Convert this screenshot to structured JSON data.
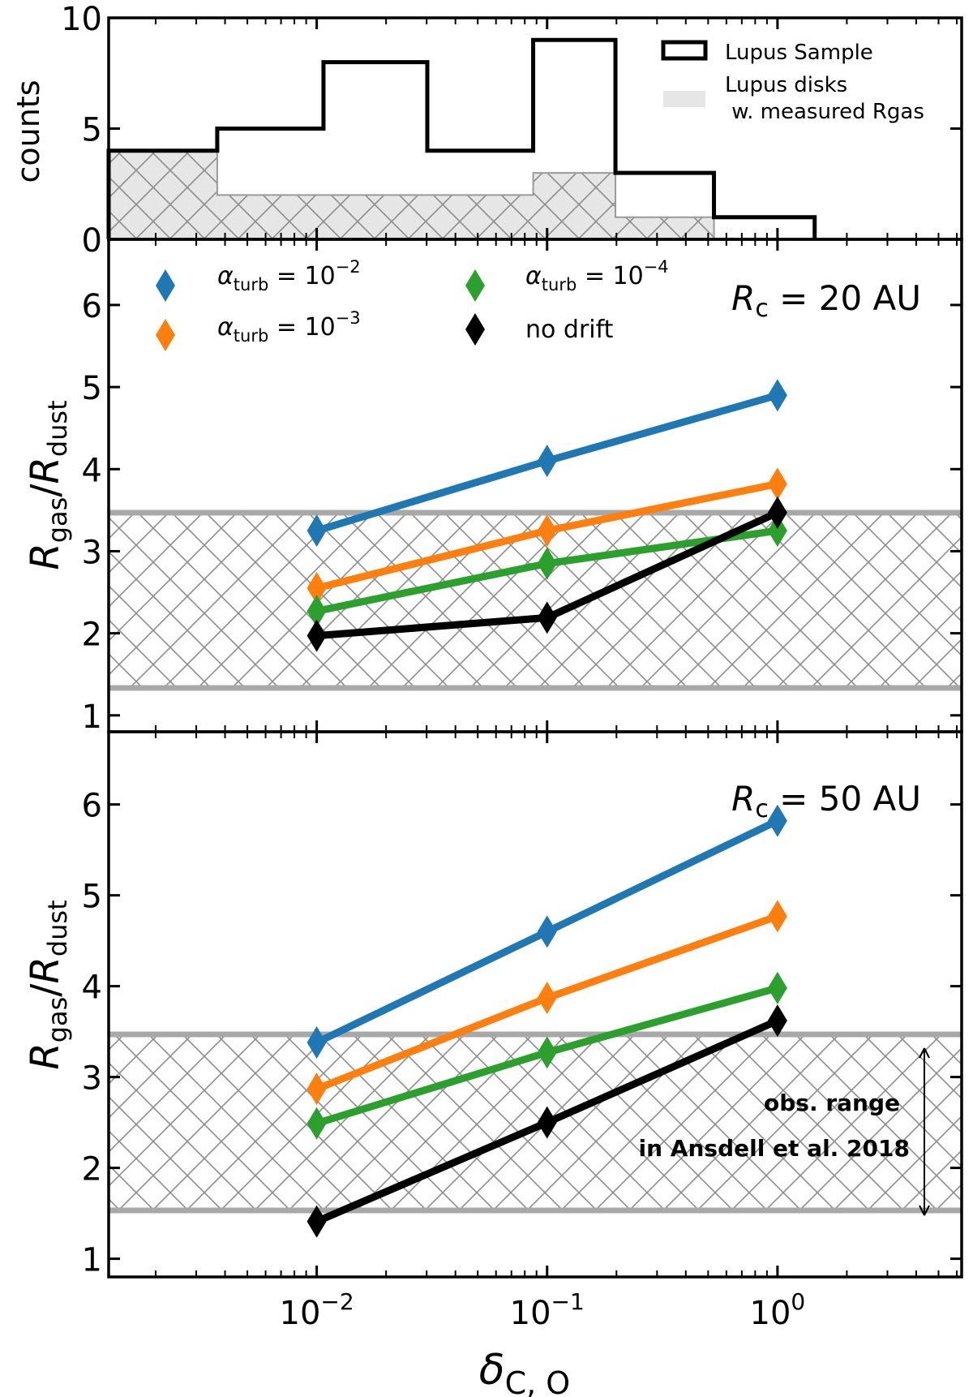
{
  "figure": {
    "xlabel": "δ",
    "xlabel_sub": "C, O",
    "xscale": "log",
    "xlim": [
      0.00125,
      6.3
    ],
    "x_ticks": [
      {
        "value": 0.01,
        "base": "10",
        "exp": "−2"
      },
      {
        "value": 0.1,
        "base": "10",
        "exp": "−1"
      },
      {
        "value": 1,
        "base": "10",
        "exp": "0"
      }
    ]
  },
  "chart_data": [
    {
      "type": "histogram",
      "panel": "top",
      "ylabel": "counts",
      "ylim": [
        0,
        10
      ],
      "y_ticks": [
        "0",
        "5",
        "10"
      ],
      "series": [
        {
          "name": "Lupus Sample",
          "style": "step-outline",
          "color": "#000000",
          "bin_edges": [
            0.00125,
            0.0037,
            0.0107,
            0.0302,
            0.087,
            0.198,
            0.53,
            1.45
          ],
          "counts": [
            4,
            5,
            8,
            4,
            9,
            3,
            1
          ]
        },
        {
          "name": "Lupus disks",
          "name_line2": " w. measured Rgas",
          "style": "filled-hatched",
          "color": "#e6e6e6",
          "bin_edges": [
            0.00125,
            0.0037,
            0.087,
            0.198,
            0.53
          ],
          "counts": [
            4,
            2,
            3,
            1
          ]
        }
      ],
      "legend_position": "top-right"
    },
    {
      "type": "line",
      "panel": "middle",
      "annotation": {
        "var": "R",
        "sub": "c",
        "text": " = 20 AU"
      },
      "ylabel": {
        "a": "R",
        "a_sub": "gas",
        "b": "R",
        "b_sub": "dust"
      },
      "ylim": [
        0.8,
        6.8
      ],
      "y_ticks": [
        "1",
        "2",
        "3",
        "4",
        "5",
        "6"
      ],
      "obs_band": [
        1.3,
        3.45
      ],
      "x": [
        0.01,
        0.1,
        1
      ],
      "series": [
        {
          "name": "α",
          "name_sub": "turb",
          "name_tail": " = 10",
          "name_exp": "−2",
          "color": "#1f77b4",
          "values": [
            3.25,
            4.1,
            4.9
          ]
        },
        {
          "name": "α",
          "name_sub": "turb",
          "name_tail": " = 10",
          "name_exp": "−3",
          "color": "#ff7f0e",
          "values": [
            2.55,
            3.25,
            3.82
          ]
        },
        {
          "name": "α",
          "name_sub": "turb",
          "name_tail": " = 10",
          "name_exp": "−4",
          "color": "#2ca02c",
          "values": [
            2.27,
            2.85,
            3.25
          ]
        },
        {
          "name": "no drift",
          "color": "#000000",
          "values": [
            1.97,
            2.19,
            3.47
          ]
        }
      ],
      "legend_position": "top-left"
    },
    {
      "type": "line",
      "panel": "bottom",
      "annotation": {
        "var": "R",
        "sub": "c",
        "text": " = 50 AU"
      },
      "ylabel": {
        "a": "R",
        "a_sub": "gas",
        "b": "R",
        "b_sub": "dust"
      },
      "ylim": [
        0.8,
        6.8
      ],
      "y_ticks": [
        "1",
        "2",
        "3",
        "4",
        "5",
        "6"
      ],
      "obs_band": [
        1.3,
        3.45
      ],
      "obs_note": [
        "obs. range",
        "in Ansdell et al. 2018"
      ],
      "x": [
        0.01,
        0.1,
        1
      ],
      "series": [
        {
          "name": "α_turb = 10^-2",
          "color": "#1f77b4",
          "values": [
            3.38,
            4.6,
            5.82
          ]
        },
        {
          "name": "α_turb = 10^-3",
          "color": "#ff7f0e",
          "values": [
            2.87,
            3.87,
            4.77
          ]
        },
        {
          "name": "α_turb = 10^-4",
          "color": "#2ca02c",
          "values": [
            2.49,
            3.27,
            3.98
          ]
        },
        {
          "name": "no drift",
          "color": "#000000",
          "values": [
            1.41,
            2.5,
            3.62
          ]
        }
      ]
    }
  ]
}
